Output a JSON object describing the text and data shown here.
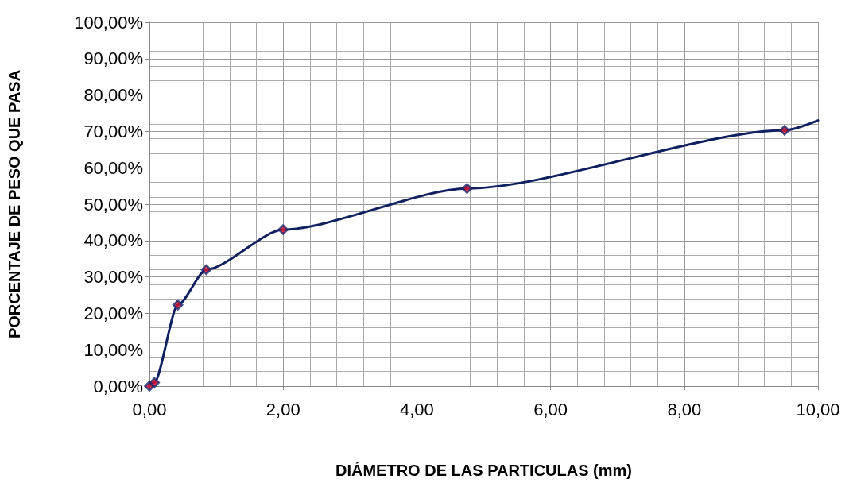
{
  "chart_data": {
    "type": "line",
    "xlabel": "DIÁMETRO DE LAS PARTICULAS (mm)",
    "ylabel": "PORCENTAJE DE PESO QUE PASA",
    "series": [
      {
        "color": "#102060",
        "marker": "none",
        "x": [
          0,
          0.075,
          0.425,
          0.85,
          2,
          4.75,
          9.5,
          10
        ],
        "values": [
          0,
          1,
          22.3,
          32,
          43,
          54.3,
          70.3,
          73
        ]
      },
      {
        "type": "scatter",
        "color": "#e01030",
        "marker": "diamond",
        "x": [
          0,
          0.075,
          0.425,
          0.85,
          2,
          4.75,
          9.5
        ],
        "values": [
          0,
          1,
          22.3,
          32,
          43,
          54.3,
          70.3
        ]
      }
    ],
    "xlim": [
      0,
      10
    ],
    "xticks": [
      {
        "value": 0,
        "label": "0,00"
      },
      {
        "value": 2,
        "label": "2,00"
      },
      {
        "value": 4,
        "label": "4,00"
      },
      {
        "value": 6,
        "label": "6,00"
      },
      {
        "value": 8,
        "label": "8,00"
      },
      {
        "value": 10,
        "label": "10,00"
      }
    ],
    "ylim": [
      0,
      100
    ],
    "yticks": [
      {
        "value": 0,
        "label": "0,00%"
      },
      {
        "value": 10,
        "label": "10,00%"
      },
      {
        "value": 20,
        "label": "20,00%"
      },
      {
        "value": 30,
        "label": "30,00%"
      },
      {
        "value": 40,
        "label": "40,00%"
      },
      {
        "value": 50,
        "label": "50,00%"
      },
      {
        "value": 60,
        "label": "60,00%"
      },
      {
        "value": 70,
        "label": "70,00%"
      },
      {
        "value": 80,
        "label": "80,00%"
      },
      {
        "value": 90,
        "label": "90,00%"
      },
      {
        "value": 100,
        "label": "100,00%"
      }
    ],
    "grid": true
  }
}
